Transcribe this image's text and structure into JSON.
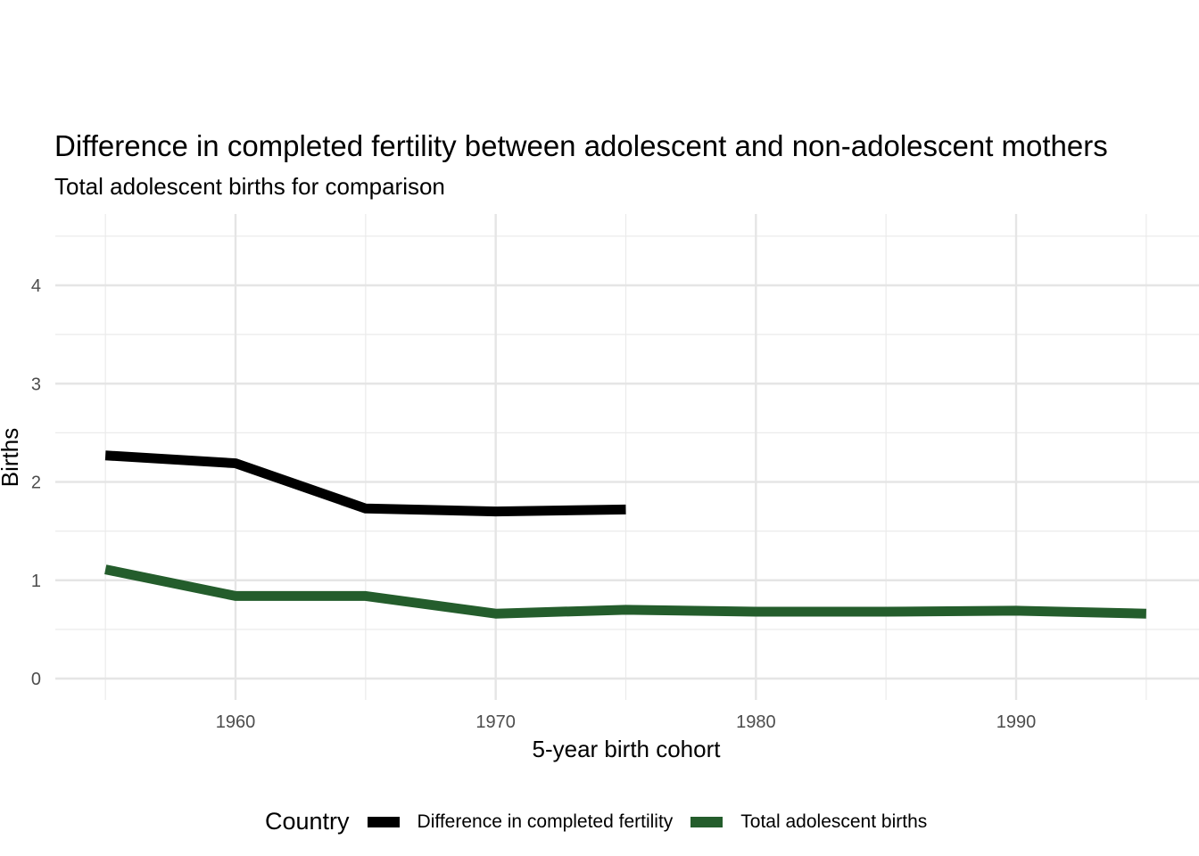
{
  "chart_data": {
    "type": "line",
    "title": "Difference in completed fertility between adolescent and non-adolescent mothers",
    "subtitle": "Total adolescent births for comparison",
    "xlabel": "5-year birth cohort",
    "ylabel": "Births",
    "xlim": [
      1953,
      1998
    ],
    "ylim": [
      -0.2,
      4.7
    ],
    "x_ticks": [
      1960,
      1970,
      1980,
      1990
    ],
    "x_tick_labels": [
      "1960",
      "1970",
      "1980",
      "1990"
    ],
    "x_minor": [
      1955,
      1965,
      1975,
      1985,
      1995
    ],
    "y_ticks": [
      0,
      1,
      2,
      3,
      4
    ],
    "y_tick_labels": [
      "0",
      "1",
      "2",
      "3",
      "4"
    ],
    "y_minor": [
      0.5,
      1.5,
      2.5,
      3.5,
      4.5
    ],
    "grid": true,
    "legend": {
      "title": "Country",
      "position": "bottom"
    },
    "series": [
      {
        "name": "Difference in completed fertility",
        "color": "#000000",
        "x": [
          1955,
          1960,
          1965,
          1970,
          1975
        ],
        "values": [
          2.27,
          2.19,
          1.73,
          1.7,
          1.72
        ]
      },
      {
        "name": "Total adolescent births",
        "color": "#245d2c",
        "x": [
          1955,
          1960,
          1965,
          1970,
          1975,
          1980,
          1985,
          1990,
          1995
        ],
        "values": [
          1.11,
          0.84,
          0.84,
          0.66,
          0.7,
          0.68,
          0.68,
          0.69,
          0.66
        ]
      }
    ]
  }
}
